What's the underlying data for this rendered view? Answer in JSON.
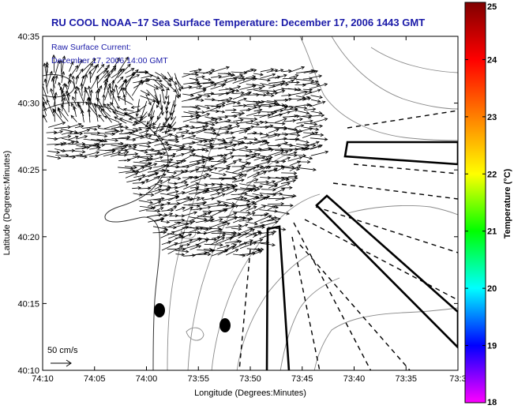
{
  "chart_data": {
    "type": "map",
    "title": "RU COOL  NOAA−17  Sea Surface Temperature:  December 17, 2006 1443 GMT",
    "annotation_lines": [
      "Raw Surface Current:",
      "December 17, 2006 14:00 GMT"
    ],
    "xlabel": "Longitude (Degrees:Minutes)",
    "ylabel": "Latitude (Degrees:Minutes)",
    "x_ticks": [
      "74:10",
      "74:05",
      "74:00",
      "73:55",
      "73:50",
      "73:45",
      "73:40",
      "73:35",
      "73:3"
    ],
    "x_tick_minutes": [
      -10,
      -5,
      0,
      5,
      10,
      15,
      20,
      25,
      30
    ],
    "y_ticks": [
      "40:35",
      "40:30",
      "40:25",
      "40:20",
      "40:15",
      "40:10"
    ],
    "y_tick_minutes": [
      35,
      30,
      25,
      20,
      15,
      10
    ],
    "xlim_minutes_west_of_74": [
      -10,
      30
    ],
    "ylim_minutes_north_of_40": [
      10,
      35
    ],
    "scale_label": "50 cm/s",
    "colorbar": {
      "label": "Temperature (°C)",
      "min": 18,
      "max": 25,
      "ticks": [
        "25",
        "24",
        "23",
        "22",
        "21",
        "20",
        "19",
        "18"
      ],
      "colors": [
        "#ff00ff",
        "#0000ff",
        "#00ffff",
        "#00ff00",
        "#ffff00",
        "#ff8000",
        "#ff0000",
        "#800000"
      ]
    },
    "current_vectors": "dense field of raw surface current arrows over the northern nearshore region (approx. 40:22–40:33 N, 73:48–74:10 W)",
    "markers": [
      {
        "name": "black dot",
        "lon_min_west": 1.0,
        "lat_min_north": 14.7
      },
      {
        "name": "black dot",
        "lon_min_west": 7.2,
        "lat_min_north": 13.5
      }
    ]
  }
}
